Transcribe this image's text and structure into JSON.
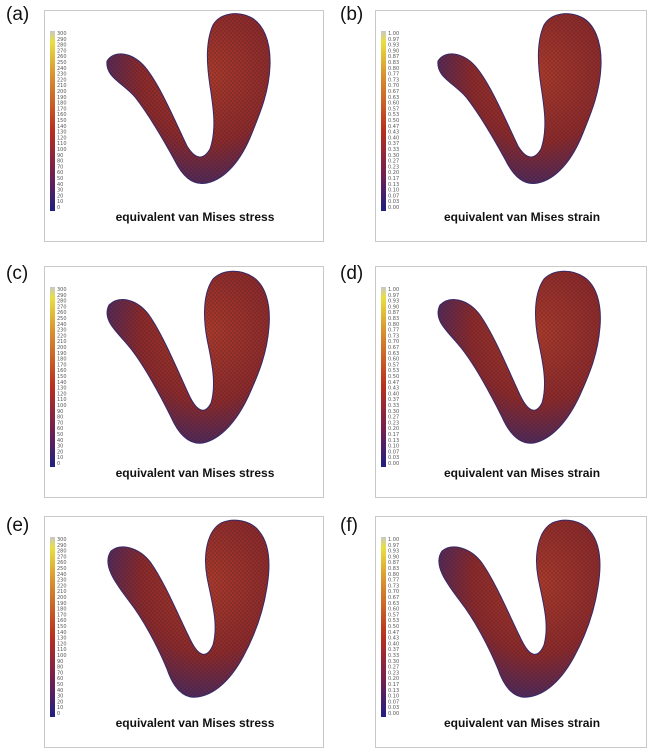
{
  "figure": {
    "panels": [
      {
        "label": "(a)",
        "caption": "equivalent van Mises stress",
        "kind": "stress",
        "ticks": [
          "300",
          "290",
          "280",
          "270",
          "260",
          "250",
          "240",
          "230",
          "220",
          "210",
          "200",
          "190",
          "180",
          "170",
          "160",
          "150",
          "140",
          "130",
          "120",
          "110",
          "100",
          "90",
          "80",
          "70",
          "60",
          "50",
          "40",
          "30",
          "20",
          "10",
          "0"
        ]
      },
      {
        "label": "(b)",
        "caption": "equivalent van Mises strain",
        "kind": "strain",
        "ticks": [
          "1.00",
          "0.97",
          "0.93",
          "0.90",
          "0.87",
          "0.83",
          "0.80",
          "0.77",
          "0.73",
          "0.70",
          "0.67",
          "0.63",
          "0.60",
          "0.57",
          "0.53",
          "0.50",
          "0.47",
          "0.43",
          "0.40",
          "0.37",
          "0.33",
          "0.30",
          "0.27",
          "0.23",
          "0.20",
          "0.17",
          "0.13",
          "0.10",
          "0.07",
          "0.03",
          "0.00"
        ]
      },
      {
        "label": "(c)",
        "caption": "equivalent van Mises stress",
        "kind": "stress",
        "ticks": [
          "300",
          "290",
          "280",
          "270",
          "260",
          "250",
          "240",
          "230",
          "220",
          "210",
          "200",
          "190",
          "180",
          "170",
          "160",
          "150",
          "140",
          "130",
          "120",
          "110",
          "100",
          "90",
          "80",
          "70",
          "60",
          "50",
          "40",
          "30",
          "20",
          "10",
          "0"
        ]
      },
      {
        "label": "(d)",
        "caption": "equivalent van Mises strain",
        "kind": "strain",
        "ticks": [
          "1.00",
          "0.97",
          "0.93",
          "0.90",
          "0.87",
          "0.83",
          "0.80",
          "0.77",
          "0.73",
          "0.70",
          "0.67",
          "0.63",
          "0.60",
          "0.57",
          "0.53",
          "0.50",
          "0.47",
          "0.43",
          "0.40",
          "0.37",
          "0.33",
          "0.30",
          "0.27",
          "0.23",
          "0.20",
          "0.17",
          "0.13",
          "0.10",
          "0.07",
          "0.03",
          "0.00"
        ]
      },
      {
        "label": "(e)",
        "caption": "equivalent van Mises stress",
        "kind": "stress",
        "ticks": [
          "300",
          "290",
          "280",
          "270",
          "260",
          "250",
          "240",
          "230",
          "220",
          "210",
          "200",
          "190",
          "180",
          "170",
          "160",
          "150",
          "140",
          "130",
          "120",
          "110",
          "100",
          "90",
          "80",
          "70",
          "60",
          "50",
          "40",
          "30",
          "20",
          "10",
          "0"
        ]
      },
      {
        "label": "(f)",
        "caption": "equivalent van Mises strain",
        "kind": "strain",
        "ticks": [
          "1.00",
          "0.97",
          "0.93",
          "0.90",
          "0.87",
          "0.83",
          "0.80",
          "0.77",
          "0.73",
          "0.70",
          "0.67",
          "0.63",
          "0.60",
          "0.57",
          "0.53",
          "0.50",
          "0.47",
          "0.43",
          "0.40",
          "0.37",
          "0.33",
          "0.30",
          "0.27",
          "0.23",
          "0.20",
          "0.17",
          "0.13",
          "0.10",
          "0.07",
          "0.03",
          "0.00"
        ]
      }
    ],
    "colors": {
      "colorbar_top": "#c8c8c8",
      "colorbar_high": "#e8e040",
      "colorbar_mid_high": "#d89030",
      "colorbar_mid": "#b83020",
      "colorbar_low": "#702050",
      "colorbar_bottom": "#202080",
      "ventricle_base": "#8a2a2a",
      "ventricle_light": "#a83a2a",
      "ventricle_dark": "#3a2a6a"
    }
  }
}
